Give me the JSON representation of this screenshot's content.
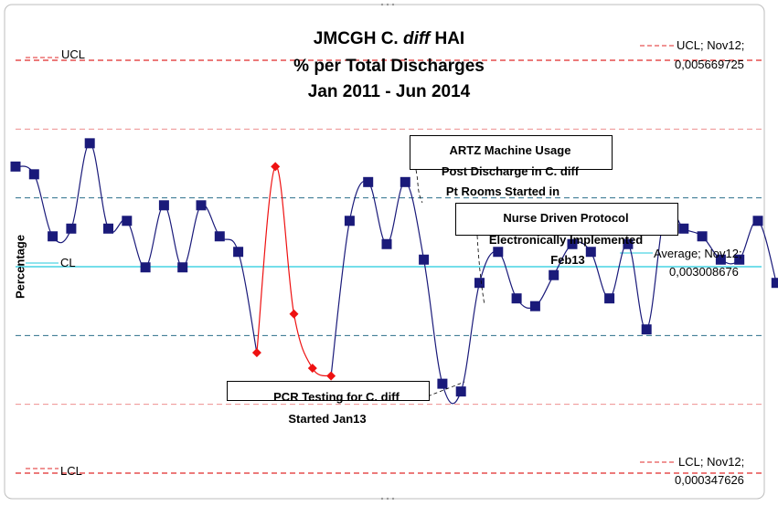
{
  "chart_data": {
    "type": "line",
    "title_parts": [
      "JMCGH C. ",
      "diff",
      " HAI"
    ],
    "subtitle": "% per Total Discharges",
    "subtitle2": "Jan 2011 - Jun 2014",
    "ylabel": "Percentage",
    "series": [
      {
        "name": "",
        "color": "#1a1a7a",
        "marker": "square",
        "values": [
          0.0043,
          0.0042,
          0.0034,
          0.0035,
          0.0046,
          0.0035,
          0.0036,
          0.003,
          0.0038,
          0.003,
          0.0038,
          0.0034,
          0.0032,
          0.0019,
          0.0043,
          0.0024,
          0.0017,
          0.0016,
          0.0036,
          0.0041,
          0.0033,
          0.0041,
          0.0031,
          0.0015,
          0.0014,
          0.0028,
          0.0032,
          0.0026,
          0.0025,
          0.0029,
          0.0033,
          0.0032,
          0.0026,
          0.0033,
          0.0022,
          0.0037,
          0.0035,
          0.0034,
          0.0031,
          0.0031,
          0.0036,
          0.0028
        ]
      },
      {
        "name": "",
        "color": "#ee1111",
        "marker": "diamond",
        "points": [
          {
            "x": 13,
            "y": 0.0019
          },
          {
            "x": 14,
            "y": 0.0043
          },
          {
            "x": 15,
            "y": 0.0024
          },
          {
            "x": 16,
            "y": 0.0017
          },
          {
            "x": 17,
            "y": 0.0016
          }
        ]
      }
    ],
    "reference_lines": {
      "ucl": {
        "label": "UCL",
        "value_label_1": "UCL; Nov12;",
        "value_label_2": "0,005669725",
        "value": 0.005669725
      },
      "cl": {
        "label": "CL",
        "value_label_1": "Average; Nov12;",
        "value_label_2": "0,003008676",
        "value": 0.003008676
      },
      "lcl": {
        "label": "LCL",
        "value_label_1": "LCL; Nov12;",
        "value_label_2": "0,000347626",
        "value": 0.000347626
      }
    },
    "annotations": {
      "artz": {
        "line1": "ARTZ  Machine Usage",
        "line2": "Post Discharge in C. diff",
        "line3": "Pt Rooms Started in"
      },
      "nurse": {
        "line1": "Nurse Driven Protocol",
        "line2": "Electronically Implemented",
        "line3": "Feb13"
      },
      "pcr": {
        "line1": "PCR Testing for C. diff",
        "line2": "Started Jan13"
      }
    },
    "colors": {
      "ucl_lcl": "#e02a2a",
      "cl": "#22c9dd",
      "sigma": "#2a6e8a",
      "frame": "#bdbdbd"
    }
  }
}
